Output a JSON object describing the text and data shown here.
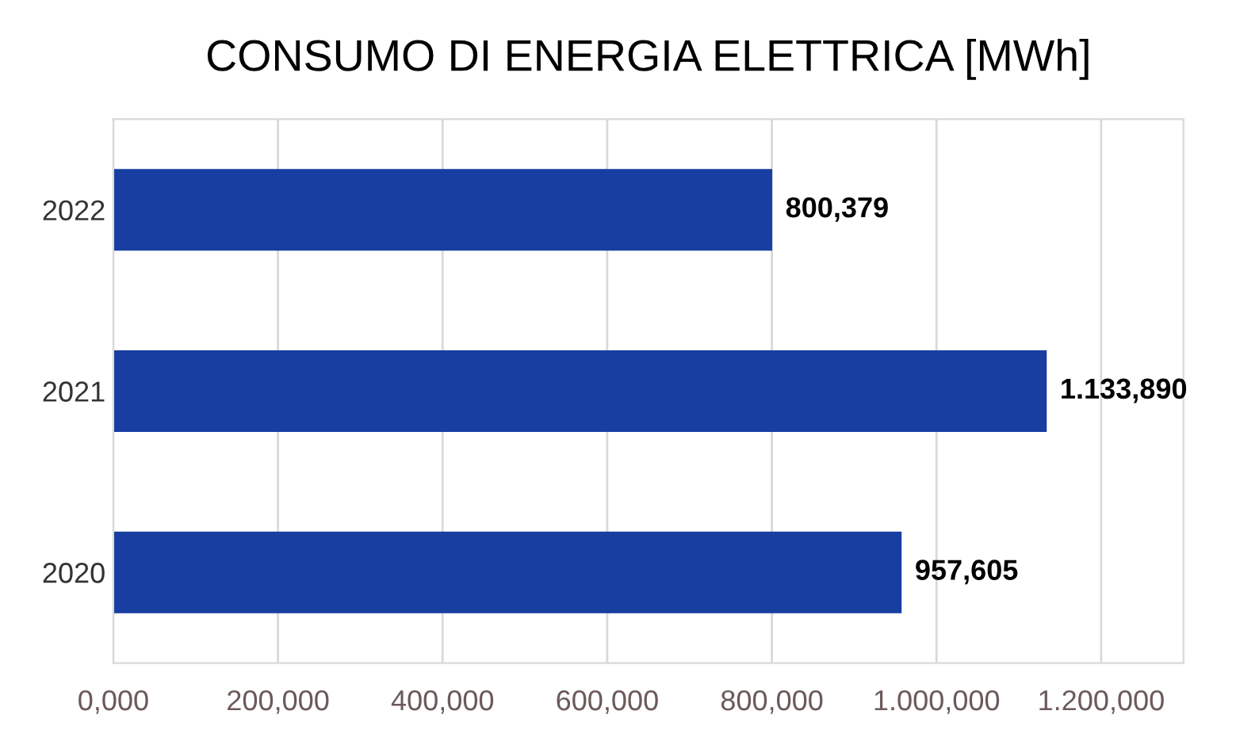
{
  "chart_data": {
    "type": "bar",
    "orientation": "horizontal",
    "title": "CONSUMO DI ENERGIA ELETTRICA [MWh]",
    "categories": [
      "2022",
      "2021",
      "2020"
    ],
    "values": [
      800.379,
      1133.89,
      957.605
    ],
    "value_labels": [
      "800,379",
      "1.133,890",
      "957,605"
    ],
    "color": "#173ea0",
    "xlim": [
      0,
      1300
    ],
    "xticks": [
      {
        "value": 0,
        "label": "0,000"
      },
      {
        "value": 200,
        "label": "200,000"
      },
      {
        "value": 400,
        "label": "400,000"
      },
      {
        "value": 600,
        "label": "600,000"
      },
      {
        "value": 800,
        "label": "800,000"
      },
      {
        "value": 1000,
        "label": "1.000,000"
      },
      {
        "value": 1200,
        "label": "1.200,000"
      }
    ],
    "grid": "x",
    "legend": false
  }
}
